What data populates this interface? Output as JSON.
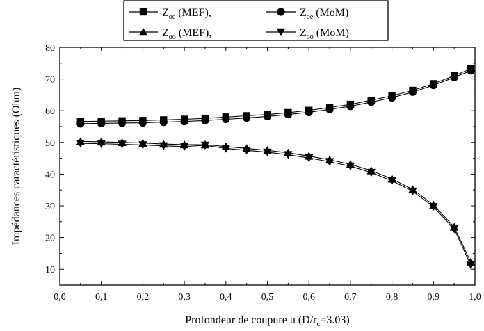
{
  "chart_data": {
    "type": "line",
    "xlabel": {
      "prefix": "Profondeur de coupure u (D/r",
      "sub": "c",
      "suffix": "=3.03)"
    },
    "ylabel": "Impédances caractéristiques (Ohm)",
    "xlim": [
      0.0,
      1.0
    ],
    "ylim": [
      5,
      80
    ],
    "xticks": [
      0.0,
      0.1,
      0.2,
      0.3,
      0.4,
      0.5,
      0.6,
      0.7,
      0.8,
      0.9,
      1.0
    ],
    "xtick_labels": [
      "0,0",
      "0,1",
      "0,2",
      "0,3",
      "0,4",
      "0,5",
      "0,6",
      "0,7",
      "0,8",
      "0,9",
      "1,0"
    ],
    "yticks": [
      10,
      20,
      30,
      40,
      50,
      60,
      70,
      80
    ],
    "ytick_labels": [
      "10",
      "20",
      "30",
      "40",
      "50",
      "60",
      "70",
      "80"
    ],
    "grid": false,
    "legend_position": "top-center",
    "x": [
      0.05,
      0.1,
      0.15,
      0.2,
      0.25,
      0.3,
      0.35,
      0.4,
      0.45,
      0.5,
      0.55,
      0.6,
      0.65,
      0.7,
      0.75,
      0.8,
      0.85,
      0.9,
      0.95,
      0.99
    ],
    "series": [
      {
        "name": "Zoe (MEF)",
        "label_main": "Z",
        "label_sub": "oe",
        "label_method": " (MEF),",
        "marker": "square",
        "color": "#000000",
        "values": [
          56.6,
          56.7,
          56.8,
          56.9,
          57.1,
          57.3,
          57.6,
          58.0,
          58.4,
          58.8,
          59.4,
          60.1,
          61.0,
          62.0,
          63.3,
          64.7,
          66.4,
          68.5,
          71.0,
          73.2
        ]
      },
      {
        "name": "Zoe (MoM)",
        "label_main": "Z",
        "label_sub": "oe",
        "label_method": " (MoM)",
        "marker": "circle",
        "color": "#000000",
        "values": [
          55.9,
          56.0,
          56.1,
          56.2,
          56.4,
          56.6,
          56.9,
          57.3,
          57.7,
          58.2,
          58.8,
          59.5,
          60.4,
          61.4,
          62.7,
          64.1,
          65.9,
          68.0,
          70.5,
          72.6
        ]
      },
      {
        "name": "Zoo (MEF)",
        "label_main": "Z",
        "label_sub": "oo",
        "label_method": " (MEF),",
        "marker": "triangle-up",
        "color": "#000000",
        "values": [
          50.3,
          50.2,
          50.0,
          49.8,
          49.5,
          49.3,
          49.3,
          48.7,
          48.1,
          47.5,
          46.7,
          45.7,
          44.5,
          43.1,
          41.1,
          38.5,
          35.2,
          30.3,
          23.3,
          12.3
        ]
      },
      {
        "name": "Zoo (MoM)",
        "label_main": "Z",
        "label_sub": "oo",
        "label_method": " (MoM)",
        "marker": "triangle-down",
        "color": "#000000",
        "values": [
          49.7,
          49.6,
          49.4,
          49.2,
          48.9,
          48.7,
          49.1,
          48.1,
          47.5,
          46.9,
          46.1,
          45.1,
          43.9,
          42.5,
          40.5,
          37.9,
          34.6,
          29.7,
          22.7,
          11.3
        ]
      }
    ]
  }
}
